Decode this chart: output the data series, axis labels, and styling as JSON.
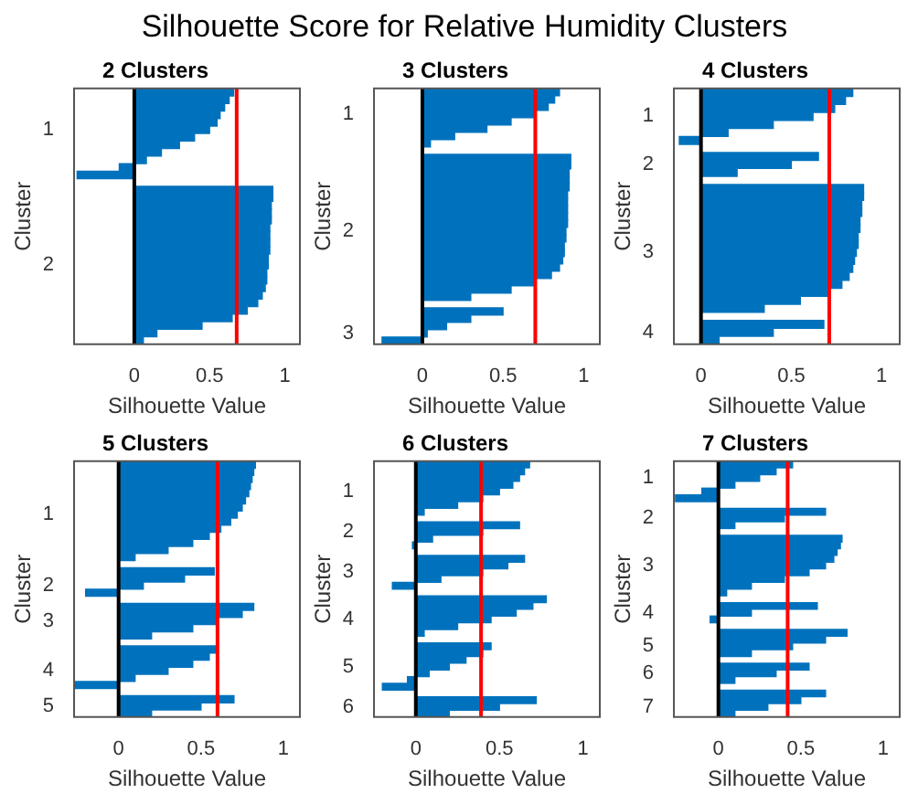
{
  "chart_data": [
    {
      "type": "bar",
      "orientation": "horizontal",
      "title": "2 Clusters",
      "xlabel": "Silhouette Value",
      "ylabel": "Cluster",
      "annotations": [
        "Silhouette Score for Relative Humidity Clusters"
      ],
      "color": "#0072bd",
      "xlim": [
        -0.4,
        1.1
      ],
      "xticks": [
        0,
        0.5,
        1
      ],
      "grid": false,
      "categories": [
        null,
        null,
        null,
        null,
        null,
        "1",
        null,
        null,
        null,
        null,
        null,
        null,
        null,
        null,
        null,
        null,
        null,
        null,
        null,
        null,
        null,
        null,
        null,
        "2",
        null,
        null,
        null,
        null,
        null,
        null,
        null,
        null,
        null,
        null
      ],
      "values": [
        0.66,
        0.63,
        0.6,
        0.57,
        0.55,
        0.5,
        0.4,
        0.3,
        0.18,
        0.08,
        -0.1,
        -0.38,
        null,
        0.92,
        0.92,
        0.91,
        0.91,
        0.91,
        0.9,
        0.9,
        0.9,
        0.9,
        0.89,
        0.89,
        0.88,
        0.88,
        0.87,
        0.85,
        0.82,
        0.75,
        0.65,
        0.45,
        0.15,
        0.06
      ],
      "ref_lines": [
        {
          "axis": "x",
          "value": 0,
          "color": "#000000"
        },
        {
          "axis": "x",
          "value": 0.68,
          "color": "#ff0000"
        }
      ]
    },
    {
      "type": "bar",
      "orientation": "horizontal",
      "title": "3 Clusters",
      "xlabel": "Silhouette Value",
      "ylabel": "Cluster",
      "color": "#0072bd",
      "xlim": [
        -0.3,
        1.1
      ],
      "xticks": [
        0,
        0.5,
        1
      ],
      "grid": false,
      "categories": [
        null,
        null,
        null,
        "1",
        null,
        null,
        null,
        null,
        null,
        null,
        null,
        null,
        null,
        null,
        null,
        null,
        null,
        null,
        null,
        "2",
        null,
        null,
        null,
        null,
        null,
        null,
        null,
        null,
        null,
        null,
        null,
        null,
        null,
        "3",
        null
      ],
      "values": [
        0.85,
        0.82,
        0.78,
        0.7,
        0.55,
        0.4,
        0.2,
        0.05,
        null,
        0.92,
        0.92,
        0.91,
        0.91,
        0.91,
        0.9,
        0.9,
        0.9,
        0.9,
        0.9,
        0.89,
        0.89,
        0.88,
        0.88,
        0.87,
        0.85,
        0.8,
        0.7,
        0.55,
        0.3,
        null,
        0.5,
        0.3,
        0.15,
        0.03,
        -0.25
      ],
      "ref_lines": [
        {
          "axis": "x",
          "value": 0,
          "color": "#000000"
        },
        {
          "axis": "x",
          "value": 0.7,
          "color": "#ff0000"
        }
      ]
    },
    {
      "type": "bar",
      "orientation": "horizontal",
      "title": "4 Clusters",
      "xlabel": "Silhouette Value",
      "ylabel": "Cluster",
      "color": "#0072bd",
      "xlim": [
        -0.15,
        1.1
      ],
      "xticks": [
        0,
        0.5,
        1
      ],
      "grid": false,
      "categories": [
        null,
        null,
        null,
        "1",
        null,
        null,
        null,
        null,
        null,
        "2",
        null,
        null,
        null,
        null,
        null,
        null,
        null,
        null,
        null,
        null,
        "3",
        null,
        null,
        null,
        null,
        null,
        null,
        null,
        null,
        null,
        "4",
        null
      ],
      "values": [
        0.84,
        0.8,
        0.74,
        0.62,
        0.4,
        0.15,
        -0.12,
        null,
        0.65,
        0.5,
        0.2,
        null,
        0.9,
        0.9,
        0.89,
        0.89,
        0.88,
        0.88,
        0.87,
        0.87,
        0.86,
        0.85,
        0.84,
        0.82,
        0.78,
        0.7,
        0.55,
        0.35,
        null,
        0.68,
        0.4,
        0.1
      ],
      "ref_lines": [
        {
          "axis": "x",
          "value": 0,
          "color": "#000000"
        },
        {
          "axis": "x",
          "value": 0.71,
          "color": "#ff0000"
        }
      ]
    },
    {
      "type": "bar",
      "orientation": "horizontal",
      "title": "5 Clusters",
      "xlabel": "Silhouette Value",
      "ylabel": "Cluster",
      "color": "#0072bd",
      "xlim": [
        -0.27,
        1.1
      ],
      "xticks": [
        0,
        0.5,
        1
      ],
      "grid": false,
      "categories": [
        null,
        null,
        null,
        null,
        null,
        null,
        null,
        "1",
        null,
        null,
        null,
        null,
        null,
        null,
        null,
        null,
        null,
        "2",
        null,
        null,
        null,
        null,
        "3",
        null,
        null,
        null,
        null,
        null,
        null,
        "4",
        null,
        null,
        null,
        null,
        "5",
        null
      ],
      "values": [
        0.83,
        0.82,
        0.81,
        0.8,
        0.79,
        0.77,
        0.75,
        0.72,
        0.68,
        0.62,
        0.55,
        0.45,
        0.3,
        0.1,
        null,
        0.58,
        0.4,
        0.15,
        -0.2,
        null,
        0.82,
        0.75,
        0.6,
        0.45,
        0.2,
        null,
        0.6,
        0.55,
        0.45,
        0.3,
        0.1,
        -0.27,
        null,
        0.7,
        0.5,
        0.2
      ],
      "ref_lines": [
        {
          "axis": "x",
          "value": 0,
          "color": "#000000"
        },
        {
          "axis": "x",
          "value": 0.6,
          "color": "#ff0000"
        }
      ]
    },
    {
      "type": "bar",
      "orientation": "horizontal",
      "title": "6 Clusters",
      "xlabel": "Silhouette Value",
      "ylabel": "Cluster",
      "color": "#0072bd",
      "xlim": [
        -0.25,
        1.1
      ],
      "xticks": [
        0,
        0.5,
        1
      ],
      "grid": false,
      "categories": [
        null,
        null,
        null,
        null,
        "1",
        null,
        null,
        null,
        null,
        null,
        "2",
        null,
        null,
        null,
        null,
        null,
        "3",
        null,
        null,
        null,
        null,
        null,
        null,
        "4",
        null,
        null,
        null,
        null,
        null,
        null,
        "5",
        null,
        null,
        null,
        null,
        null,
        "6",
        null
      ],
      "values": [
        0.68,
        0.65,
        0.62,
        0.58,
        0.5,
        0.4,
        0.25,
        0.05,
        null,
        0.62,
        0.4,
        0.1,
        -0.02,
        null,
        0.65,
        0.55,
        0.4,
        0.15,
        -0.14,
        null,
        0.78,
        0.7,
        0.6,
        0.45,
        0.25,
        0.05,
        null,
        0.45,
        0.4,
        0.3,
        0.2,
        0.08,
        -0.05,
        -0.2,
        null,
        0.72,
        0.5,
        0.2
      ],
      "ref_lines": [
        {
          "axis": "x",
          "value": 0,
          "color": "#000000"
        },
        {
          "axis": "x",
          "value": 0.39,
          "color": "#ff0000"
        }
      ]
    },
    {
      "type": "bar",
      "orientation": "horizontal",
      "title": "7 Clusters",
      "xlabel": "Silhouette Value",
      "ylabel": "Cluster",
      "color": "#0072bd",
      "xlim": [
        -0.27,
        1.1
      ],
      "xticks": [
        0,
        0.5,
        1
      ],
      "grid": false,
      "categories": [
        null,
        null,
        "1",
        null,
        null,
        null,
        null,
        null,
        "2",
        null,
        null,
        null,
        null,
        null,
        null,
        "3",
        null,
        null,
        null,
        null,
        null,
        null,
        "4",
        null,
        null,
        null,
        null,
        "5",
        null,
        null,
        null,
        "6",
        null,
        null,
        null,
        null,
        "7",
        null
      ],
      "values": [
        0.45,
        0.35,
        0.25,
        0.1,
        -0.1,
        -0.26,
        null,
        0.65,
        0.4,
        0.1,
        null,
        0.75,
        0.74,
        0.72,
        0.7,
        0.65,
        0.55,
        0.4,
        0.2,
        0.05,
        null,
        0.6,
        0.2,
        -0.05,
        null,
        0.78,
        0.65,
        0.45,
        0.2,
        null,
        0.55,
        0.35,
        0.1,
        null,
        0.65,
        0.5,
        0.3,
        0.1
      ],
      "ref_lines": [
        {
          "axis": "x",
          "value": 0,
          "color": "#000000"
        },
        {
          "axis": "x",
          "value": 0.42,
          "color": "#ff0000"
        }
      ]
    }
  ]
}
